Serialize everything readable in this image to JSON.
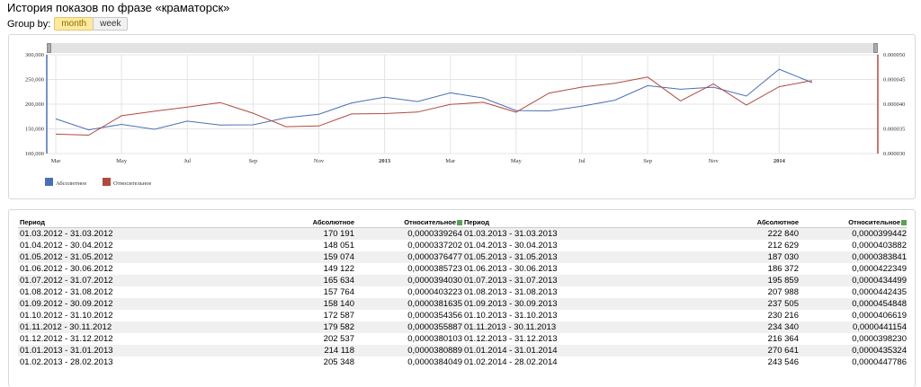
{
  "page": {
    "title": "История показов по фразе «краматорск»"
  },
  "group_by": {
    "label": "Group by:",
    "options": [
      "month",
      "week"
    ],
    "selected": "month"
  },
  "chart_data": {
    "type": "line",
    "x": [
      "2012-03",
      "2012-04",
      "2012-05",
      "2012-06",
      "2012-07",
      "2012-08",
      "2012-09",
      "2012-10",
      "2012-11",
      "2012-12",
      "2013-01",
      "2013-02",
      "2013-03",
      "2013-04",
      "2013-05",
      "2013-06",
      "2013-07",
      "2013-08",
      "2013-09",
      "2013-10",
      "2013-11",
      "2013-12",
      "2014-01",
      "2014-02"
    ],
    "x_tick_labels": [
      "Mar",
      "May",
      "Jul",
      "Sep",
      "Nov",
      "2013",
      "Mar",
      "May",
      "Jul",
      "Sep",
      "Nov",
      "2014"
    ],
    "y_left_ticks": [
      "300,000",
      "250,000",
      "200,000",
      "150,000",
      "100,000"
    ],
    "y_right_ticks": [
      "0.000050",
      "0.000045",
      "0.000040",
      "0.000035",
      "0.000030"
    ],
    "ylim_left": [
      100000,
      300000
    ],
    "ylim_right": [
      3e-05,
      5e-05
    ],
    "series": [
      {
        "name": "Абсолютное",
        "axis": "left",
        "color": "#4a6fb5",
        "values": [
          170191,
          148051,
          159074,
          149122,
          165634,
          157764,
          158140,
          172587,
          179582,
          202537,
          214118,
          205348,
          222840,
          212629,
          187030,
          186372,
          195859,
          207988,
          237505,
          230216,
          234340,
          216364,
          270641,
          243546
        ]
      },
      {
        "name": "Относительное",
        "axis": "right",
        "color": "#b04a3f",
        "values": [
          3.39264e-05,
          3.37202e-05,
          3.76477e-05,
          3.85723e-05,
          3.9403e-05,
          4.03223e-05,
          3.81635e-05,
          3.54356e-05,
          3.55887e-05,
          3.80103e-05,
          3.80889e-05,
          3.84049e-05,
          3.99442e-05,
          4.03882e-05,
          3.83841e-05,
          4.22349e-05,
          4.34499e-05,
          4.42435e-05,
          4.54848e-05,
          4.06619e-05,
          4.41154e-05,
          3.9823e-05,
          4.35324e-05,
          4.47786e-05
        ]
      }
    ],
    "legend": "bottom-left",
    "grid": true
  },
  "table": {
    "headers": [
      "Период",
      "Абсолютное",
      "Относительное"
    ],
    "left": [
      [
        "01.03.2012 - 31.03.2012",
        "170 191",
        "0,0000339264"
      ],
      [
        "01.04.2012 - 30.04.2012",
        "148 051",
        "0,0000337202"
      ],
      [
        "01.05.2012 - 31.05.2012",
        "159 074",
        "0,0000376477"
      ],
      [
        "01.06.2012 - 30.06.2012",
        "149 122",
        "0,0000385723"
      ],
      [
        "01.07.2012 - 31.07.2012",
        "165 634",
        "0,0000394030"
      ],
      [
        "01.08.2012 - 31.08.2012",
        "157 764",
        "0,0000403223"
      ],
      [
        "01.09.2012 - 30.09.2012",
        "158 140",
        "0,0000381635"
      ],
      [
        "01.10.2012 - 31.10.2012",
        "172 587",
        "0,0000354356"
      ],
      [
        "01.11.2012 - 30.11.2012",
        "179 582",
        "0,0000355887"
      ],
      [
        "01.12.2012 - 31.12.2012",
        "202 537",
        "0,0000380103"
      ],
      [
        "01.01.2013 - 31.01.2013",
        "214 118",
        "0,0000380889"
      ],
      [
        "01.02.2013 - 28.02.2013",
        "205 348",
        "0,0000384049"
      ]
    ],
    "right": [
      [
        "01.03.2013 - 31.03.2013",
        "222 840",
        "0,0000399442"
      ],
      [
        "01.04.2013 - 30.04.2013",
        "212 629",
        "0,0000403882"
      ],
      [
        "01.05.2013 - 31.05.2013",
        "187 030",
        "0,0000383841"
      ],
      [
        "01.06.2013 - 30.06.2013",
        "186 372",
        "0,0000422349"
      ],
      [
        "01.07.2013 - 31.07.2013",
        "195 859",
        "0,0000434499"
      ],
      [
        "01.08.2013 - 31.08.2013",
        "207 988",
        "0,0000442435"
      ],
      [
        "01.09.2013 - 30.09.2013",
        "237 505",
        "0,0000454848"
      ],
      [
        "01.10.2013 - 31.10.2013",
        "230 216",
        "0,0000406619"
      ],
      [
        "01.11.2013 - 30.11.2013",
        "234 340",
        "0,0000441154"
      ],
      [
        "01.12.2013 - 31.12.2013",
        "216 364",
        "0,0000398230"
      ],
      [
        "01.01.2014 - 31.01.2014",
        "270 641",
        "0,0000435324"
      ],
      [
        "01.02.2014 - 28.02.2014",
        "243 546",
        "0,0000447786"
      ]
    ]
  }
}
